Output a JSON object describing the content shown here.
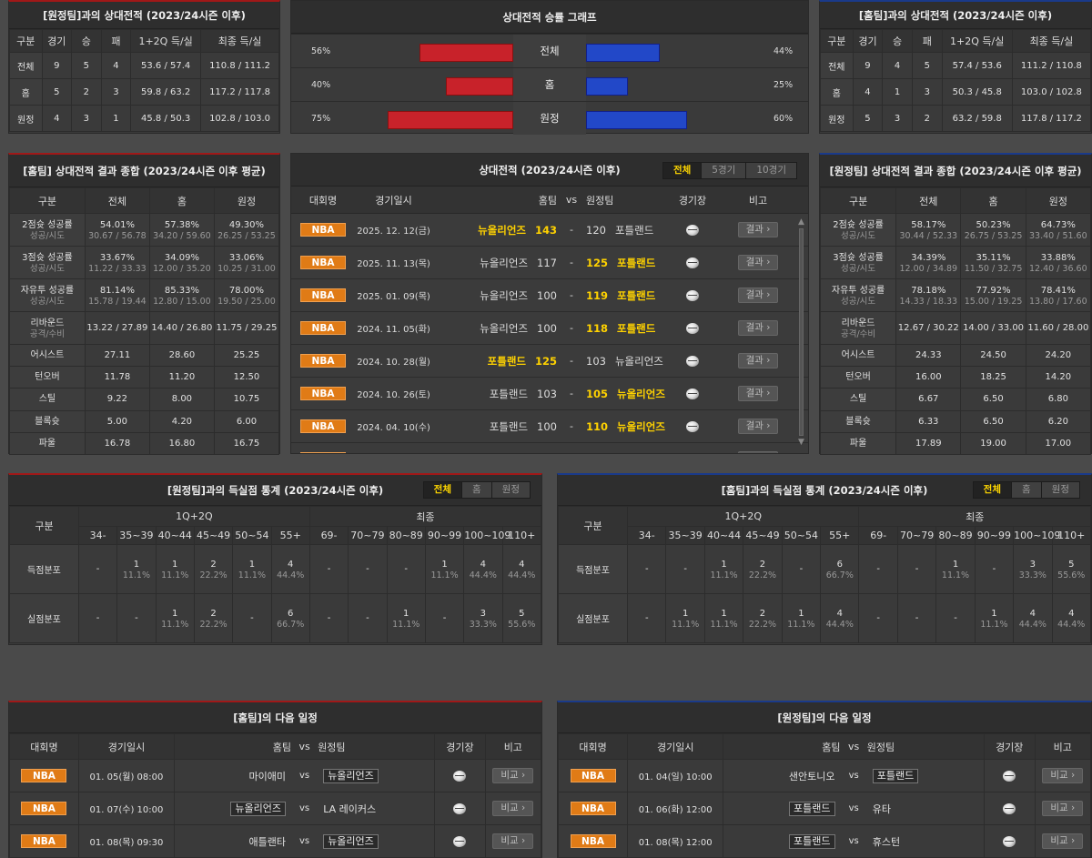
{
  "top_left": {
    "title": "[원정팀]과의 상대전적 (2023/24시즌 이후)",
    "headers": [
      "구분",
      "경기",
      "승",
      "패",
      "1+2Q 득/실",
      "최종 득/실"
    ],
    "rows": [
      [
        "전체",
        "9",
        "5",
        "4",
        "53.6 / 57.4",
        "110.8 / 111.2"
      ],
      [
        "홈",
        "5",
        "2",
        "3",
        "59.8 / 63.2",
        "117.2 / 117.8"
      ],
      [
        "원정",
        "4",
        "3",
        "1",
        "45.8 / 50.3",
        "102.8 / 103.0"
      ]
    ]
  },
  "top_right": {
    "title": "[홈팀]과의 상대전적 (2023/24시즌 이후)",
    "headers": [
      "구분",
      "경기",
      "승",
      "패",
      "1+2Q 득/실",
      "최종 득/실"
    ],
    "rows": [
      [
        "전체",
        "9",
        "4",
        "5",
        "57.4 / 53.6",
        "111.2 / 110.8"
      ],
      [
        "홈",
        "4",
        "1",
        "3",
        "50.3 / 45.8",
        "103.0 / 102.8"
      ],
      [
        "원정",
        "5",
        "3",
        "2",
        "63.2 / 59.8",
        "117.8 / 117.2"
      ]
    ]
  },
  "graph": {
    "title": "상대전적 승률 그래프",
    "rows": [
      {
        "label": "전체",
        "left": "56%",
        "right": "44%",
        "lv": 56,
        "rv": 44
      },
      {
        "label": "홈",
        "left": "40%",
        "right": "25%",
        "lv": 40,
        "rv": 25
      },
      {
        "label": "원정",
        "left": "75%",
        "right": "60%",
        "lv": 75,
        "rv": 60
      }
    ],
    "colors": {
      "home": "#c8222a",
      "away": "#2248c8"
    }
  },
  "mid_left": {
    "title": "[홈팀] 상대전적 결과 종합 (2023/24시즌 이후 평균)",
    "headers": [
      "구분",
      "전체",
      "홈",
      "원정"
    ],
    "rows": [
      {
        "l": "2점슛 성공률",
        "ls": "성공/시도",
        "v": [
          [
            "54.01%",
            "30.67 / 56.78"
          ],
          [
            "57.38%",
            "34.20 / 59.60"
          ],
          [
            "49.30%",
            "26.25 / 53.25"
          ]
        ]
      },
      {
        "l": "3점슛 성공률",
        "ls": "성공/시도",
        "v": [
          [
            "33.67%",
            "11.22 / 33.33"
          ],
          [
            "34.09%",
            "12.00 / 35.20"
          ],
          [
            "33.06%",
            "10.25 / 31.00"
          ]
        ]
      },
      {
        "l": "자유투 성공률",
        "ls": "성공/시도",
        "v": [
          [
            "81.14%",
            "15.78 / 19.44"
          ],
          [
            "85.33%",
            "12.80 / 15.00"
          ],
          [
            "78.00%",
            "19.50 / 25.00"
          ]
        ]
      },
      {
        "l": "리바운드",
        "ls": "공격/수비",
        "v": [
          [
            "13.22 / 27.89",
            ""
          ],
          [
            "14.40 / 26.80",
            ""
          ],
          [
            "11.75 / 29.25",
            ""
          ]
        ]
      },
      {
        "l": "어시스트",
        "ls": "",
        "v": [
          [
            "27.11",
            ""
          ],
          [
            "28.60",
            ""
          ],
          [
            "25.25",
            ""
          ]
        ]
      },
      {
        "l": "턴오버",
        "ls": "",
        "v": [
          [
            "11.78",
            ""
          ],
          [
            "11.20",
            ""
          ],
          [
            "12.50",
            ""
          ]
        ]
      },
      {
        "l": "스틸",
        "ls": "",
        "v": [
          [
            "9.22",
            ""
          ],
          [
            "8.00",
            ""
          ],
          [
            "10.75",
            ""
          ]
        ]
      },
      {
        "l": "블록슛",
        "ls": "",
        "v": [
          [
            "5.00",
            ""
          ],
          [
            "4.20",
            ""
          ],
          [
            "6.00",
            ""
          ]
        ]
      },
      {
        "l": "파울",
        "ls": "",
        "v": [
          [
            "16.78",
            ""
          ],
          [
            "16.80",
            ""
          ],
          [
            "16.75",
            ""
          ]
        ]
      }
    ]
  },
  "mid_right": {
    "title": "[원정팀] 상대전적 결과 종합 (2023/24시즌 이후 평균)",
    "headers": [
      "구분",
      "전체",
      "홈",
      "원정"
    ],
    "rows": [
      {
        "l": "2점슛 성공률",
        "ls": "성공/시도",
        "v": [
          [
            "58.17%",
            "30.44 / 52.33"
          ],
          [
            "50.23%",
            "26.75 / 53.25"
          ],
          [
            "64.73%",
            "33.40 / 51.60"
          ]
        ]
      },
      {
        "l": "3점슛 성공률",
        "ls": "성공/시도",
        "v": [
          [
            "34.39%",
            "12.00 / 34.89"
          ],
          [
            "35.11%",
            "11.50 / 32.75"
          ],
          [
            "33.88%",
            "12.40 / 36.60"
          ]
        ]
      },
      {
        "l": "자유투 성공률",
        "ls": "성공/시도",
        "v": [
          [
            "78.18%",
            "14.33 / 18.33"
          ],
          [
            "77.92%",
            "15.00 / 19.25"
          ],
          [
            "78.41%",
            "13.80 / 17.60"
          ]
        ]
      },
      {
        "l": "리바운드",
        "ls": "공격/수비",
        "v": [
          [
            "12.67 / 30.22",
            ""
          ],
          [
            "14.00 / 33.00",
            ""
          ],
          [
            "11.60 / 28.00",
            ""
          ]
        ]
      },
      {
        "l": "어시스트",
        "ls": "",
        "v": [
          [
            "24.33",
            ""
          ],
          [
            "24.50",
            ""
          ],
          [
            "24.20",
            ""
          ]
        ]
      },
      {
        "l": "턴오버",
        "ls": "",
        "v": [
          [
            "16.00",
            ""
          ],
          [
            "18.25",
            ""
          ],
          [
            "14.20",
            ""
          ]
        ]
      },
      {
        "l": "스틸",
        "ls": "",
        "v": [
          [
            "6.67",
            ""
          ],
          [
            "6.50",
            ""
          ],
          [
            "6.80",
            ""
          ]
        ]
      },
      {
        "l": "블록슛",
        "ls": "",
        "v": [
          [
            "6.33",
            ""
          ],
          [
            "6.50",
            ""
          ],
          [
            "6.20",
            ""
          ]
        ]
      },
      {
        "l": "파울",
        "ls": "",
        "v": [
          [
            "17.89",
            ""
          ],
          [
            "19.00",
            ""
          ],
          [
            "17.00",
            ""
          ]
        ]
      }
    ]
  },
  "h2h": {
    "title": "상대전적 (2023/24시즌 이후)",
    "tabs": [
      "전체",
      "5경기",
      "10경기"
    ],
    "headers": {
      "league": "대회명",
      "date": "경기일시",
      "home": "홈팀",
      "vs": "vs",
      "away": "원정팀",
      "venue": "경기장",
      "note": "비고"
    },
    "button": "결과",
    "league": "NBA",
    "games": [
      {
        "date": "2025. 12. 12(금)",
        "home": "뉴올리언즈",
        "hs": "143",
        "as": "120",
        "away": "포틀랜드",
        "w": "h"
      },
      {
        "date": "2025. 11. 13(목)",
        "home": "뉴올리언즈",
        "hs": "117",
        "as": "125",
        "away": "포틀랜드",
        "w": "a"
      },
      {
        "date": "2025. 01. 09(목)",
        "home": "뉴올리언즈",
        "hs": "100",
        "as": "119",
        "away": "포틀랜드",
        "w": "a"
      },
      {
        "date": "2024. 11. 05(화)",
        "home": "뉴올리언즈",
        "hs": "100",
        "as": "118",
        "away": "포틀랜드",
        "w": "a"
      },
      {
        "date": "2024. 10. 28(월)",
        "home": "포틀랜드",
        "hs": "125",
        "as": "103",
        "away": "뉴올리언즈",
        "w": "h"
      },
      {
        "date": "2024. 10. 26(토)",
        "home": "포틀랜드",
        "hs": "103",
        "as": "105",
        "away": "뉴올리언즈",
        "w": "a"
      },
      {
        "date": "2024. 04. 10(수)",
        "home": "포틀랜드",
        "hs": "100",
        "as": "110",
        "away": "뉴올리언즈",
        "w": "a"
      }
    ]
  },
  "score_left": {
    "title": "[원정팀]과의 득실점 통계 (2023/24시즌 이후)",
    "tabs": [
      "전체",
      "홈",
      "원정"
    ],
    "group_label": "구분",
    "q_label": "1Q+2Q",
    "f_label": "최종",
    "q_bins": [
      "34-",
      "35~39",
      "40~44",
      "45~49",
      "50~54",
      "55+"
    ],
    "f_bins": [
      "69-",
      "70~79",
      "80~89",
      "90~99",
      "100~109",
      "110+"
    ],
    "rows": [
      {
        "label": "득점분포",
        "cells": [
          [
            "-",
            ""
          ],
          [
            "1",
            "11.1%"
          ],
          [
            "1",
            "11.1%"
          ],
          [
            "2",
            "22.2%"
          ],
          [
            "1",
            "11.1%"
          ],
          [
            "4",
            "44.4%"
          ],
          [
            "-",
            ""
          ],
          [
            "-",
            ""
          ],
          [
            "-",
            ""
          ],
          [
            "1",
            "11.1%"
          ],
          [
            "4",
            "44.4%"
          ],
          [
            "4",
            "44.4%"
          ]
        ]
      },
      {
        "label": "실점분포",
        "cells": [
          [
            "-",
            ""
          ],
          [
            "-",
            ""
          ],
          [
            "1",
            "11.1%"
          ],
          [
            "2",
            "22.2%"
          ],
          [
            "-",
            ""
          ],
          [
            "6",
            "66.7%"
          ],
          [
            "-",
            ""
          ],
          [
            "-",
            ""
          ],
          [
            "1",
            "11.1%"
          ],
          [
            "-",
            ""
          ],
          [
            "3",
            "33.3%"
          ],
          [
            "5",
            "55.6%"
          ]
        ]
      }
    ]
  },
  "score_right": {
    "title": "[홈팀]과의 득실점 통계 (2023/24시즌 이후)",
    "tabs": [
      "전체",
      "홈",
      "원정"
    ],
    "group_label": "구분",
    "q_label": "1Q+2Q",
    "f_label": "최종",
    "q_bins": [
      "34-",
      "35~39",
      "40~44",
      "45~49",
      "50~54",
      "55+"
    ],
    "f_bins": [
      "69-",
      "70~79",
      "80~89",
      "90~99",
      "100~109",
      "110+"
    ],
    "rows": [
      {
        "label": "득점분포",
        "cells": [
          [
            "-",
            ""
          ],
          [
            "-",
            ""
          ],
          [
            "1",
            "11.1%"
          ],
          [
            "2",
            "22.2%"
          ],
          [
            "-",
            ""
          ],
          [
            "6",
            "66.7%"
          ],
          [
            "-",
            ""
          ],
          [
            "-",
            ""
          ],
          [
            "1",
            "11.1%"
          ],
          [
            "-",
            ""
          ],
          [
            "3",
            "33.3%"
          ],
          [
            "5",
            "55.6%"
          ]
        ]
      },
      {
        "label": "실점분포",
        "cells": [
          [
            "-",
            ""
          ],
          [
            "1",
            "11.1%"
          ],
          [
            "1",
            "11.1%"
          ],
          [
            "2",
            "22.2%"
          ],
          [
            "1",
            "11.1%"
          ],
          [
            "4",
            "44.4%"
          ],
          [
            "-",
            ""
          ],
          [
            "-",
            ""
          ],
          [
            "-",
            ""
          ],
          [
            "1",
            "11.1%"
          ],
          [
            "4",
            "44.4%"
          ],
          [
            "4",
            "44.4%"
          ]
        ]
      }
    ]
  },
  "next_left": {
    "title": "[홈팀]의 다음 일정",
    "headers": {
      "league": "대회명",
      "date": "경기일시",
      "home": "홈팀",
      "vs": "vs",
      "away": "원정팀",
      "venue": "경기장",
      "note": "비고"
    },
    "button": "비교",
    "league": "NBA",
    "games": [
      {
        "date": "01. 05(월) 08:00",
        "home": "마이애미",
        "away": "뉴올리언즈",
        "box": "away"
      },
      {
        "date": "01. 07(수) 10:00",
        "home": "뉴올리언즈",
        "away": "LA 레이커스",
        "box": "home"
      },
      {
        "date": "01. 08(목) 09:30",
        "home": "애틀랜타",
        "away": "뉴올리언즈",
        "box": "away"
      }
    ]
  },
  "next_right": {
    "title": "[원정팀]의 다음 일정",
    "headers": {
      "league": "대회명",
      "date": "경기일시",
      "home": "홈팀",
      "vs": "vs",
      "away": "원정팀",
      "venue": "경기장",
      "note": "비고"
    },
    "button": "비교",
    "league": "NBA",
    "games": [
      {
        "date": "01. 04(일) 10:00",
        "home": "샌안토니오",
        "away": "포틀랜드",
        "box": "away"
      },
      {
        "date": "01. 06(화) 12:00",
        "home": "포틀랜드",
        "away": "유타",
        "box": "home"
      },
      {
        "date": "01. 08(목) 12:00",
        "home": "포틀랜드",
        "away": "휴스턴",
        "box": "home"
      }
    ]
  }
}
